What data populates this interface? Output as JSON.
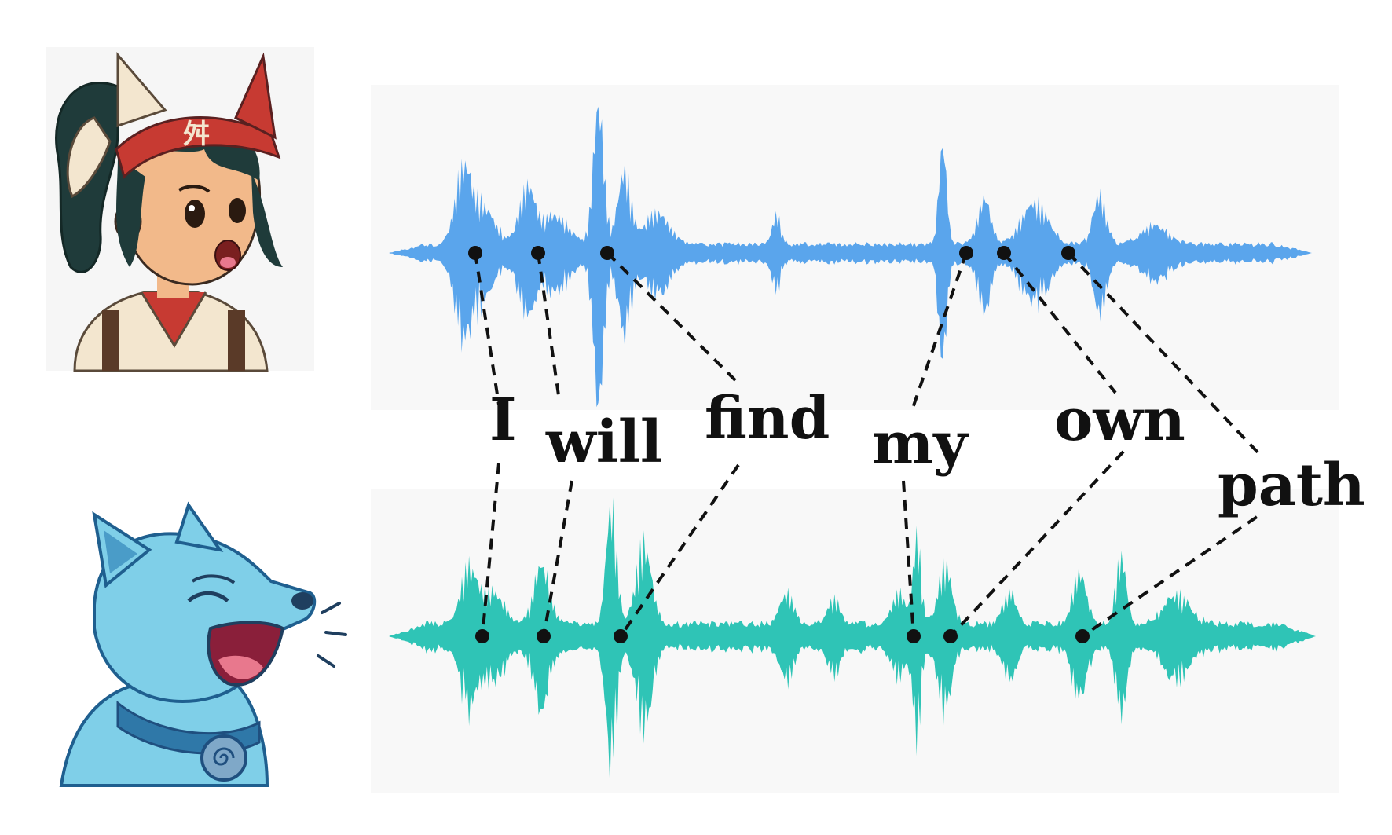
{
  "words": [
    "I",
    "will",
    "find",
    "my",
    "own",
    "path"
  ],
  "speakers": [
    {
      "name": "girl-character"
    },
    {
      "name": "wolf-character"
    }
  ],
  "colors": {
    "waveform_top": "#5aa5ec",
    "waveform_bottom": "#2fc4b6",
    "panel": "#f8f8f8",
    "connector": "#111111",
    "girl_hair": "#1f3b3a",
    "girl_headband": "#c73a32",
    "girl_skin": "#f2b98a",
    "girl_robe": "#f3e6cf",
    "wolf_body": "#7fcfe8",
    "wolf_dark": "#1f5f8f",
    "wolf_collar": "#2f78a8",
    "wolf_mouth": "#e8788d"
  },
  "alignment": {
    "top_times": [
      0.09,
      0.16,
      0.24,
      0.63,
      0.67,
      0.74
    ],
    "bottom_times": [
      0.1,
      0.17,
      0.25,
      0.57,
      0.61,
      0.75
    ]
  }
}
